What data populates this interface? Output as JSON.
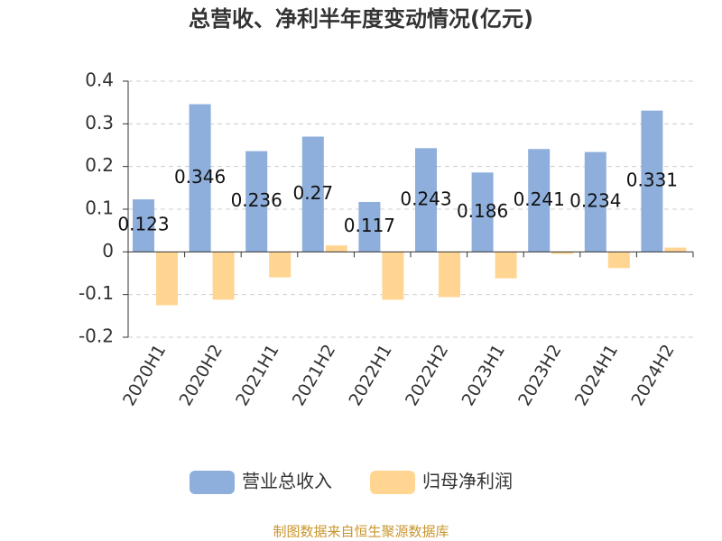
{
  "chart_data": {
    "type": "bar",
    "title": "总营收、净利半年度变动情况(亿元)",
    "categories": [
      "2020H1",
      "2020H2",
      "2021H1",
      "2021H2",
      "2022H1",
      "2022H2",
      "2023H1",
      "2023H2",
      "2024H1",
      "2024H2"
    ],
    "series": [
      {
        "name": "营业总收入",
        "color": "#8eaedb",
        "values": [
          0.123,
          0.346,
          0.236,
          0.27,
          0.117,
          0.243,
          0.186,
          0.241,
          0.234,
          0.331
        ],
        "show_labels": true
      },
      {
        "name": "归母净利润",
        "color": "#ffd591",
        "values": [
          -0.125,
          -0.112,
          -0.06,
          0.015,
          -0.112,
          -0.106,
          -0.062,
          -0.005,
          -0.038,
          0.01
        ],
        "show_labels": false
      }
    ],
    "ylim": [
      -0.2,
      0.4
    ],
    "yticks": [
      -0.2,
      -0.1,
      0,
      0.1,
      0.2,
      0.3,
      0.4
    ],
    "grid": true,
    "legend": "bottom",
    "source": "制图数据来自恒生聚源数据库"
  }
}
